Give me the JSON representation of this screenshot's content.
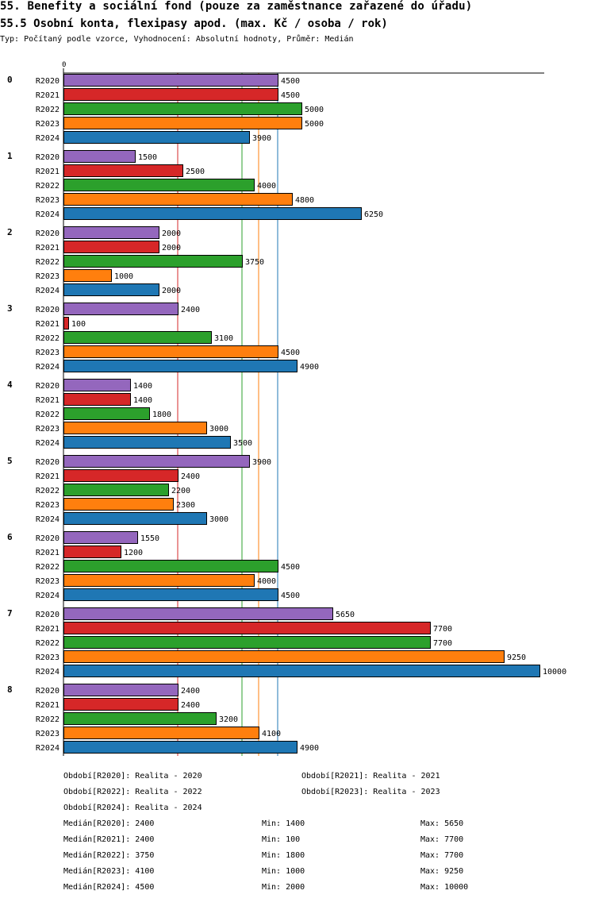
{
  "header": {
    "title": "55. Benefity a sociální fond (pouze za zaměstnance zařazené do úřadu)",
    "subtitle": "55.5 Osobní konta, flexipasy apod. (max. Kč / osoba / rok)",
    "typeline": "Typ: Počítaný podle vzorce, Vyhodnocení: Absolutní hodnoty, Průměr: Medián"
  },
  "chart_data": {
    "type": "bar",
    "orientation": "horizontal",
    "axis_zero_label": "0",
    "xlim": [
      0,
      10000
    ],
    "categories": [
      "0",
      "1",
      "2",
      "3",
      "4",
      "5",
      "6",
      "7",
      "8"
    ],
    "series": [
      {
        "name": "R2020",
        "color": "#9467bd",
        "values": [
          4500,
          1500,
          2000,
          2400,
          1400,
          3900,
          1550,
          5650,
          2400
        ]
      },
      {
        "name": "R2021",
        "color": "#d62728",
        "values": [
          4500,
          2500,
          2000,
          100,
          1400,
          2400,
          1200,
          7700,
          2400
        ]
      },
      {
        "name": "R2022",
        "color": "#2ca02c",
        "values": [
          5000,
          4000,
          3750,
          3100,
          1800,
          2200,
          4500,
          7700,
          3200
        ]
      },
      {
        "name": "R2023",
        "color": "#ff7f0e",
        "values": [
          5000,
          4800,
          1000,
          4500,
          3000,
          2300,
          4000,
          9250,
          4100
        ]
      },
      {
        "name": "R2024",
        "color": "#1f77b4",
        "values": [
          3900,
          6250,
          2000,
          4900,
          3500,
          3000,
          4500,
          10000,
          4900
        ]
      }
    ],
    "median_lines": [
      {
        "series": "R2020",
        "value": 2400,
        "color": "#d62728"
      },
      {
        "series": "R2022",
        "value": 3750,
        "color": "#2ca02c"
      },
      {
        "series": "R2023",
        "value": 4100,
        "color": "#ff7f0e"
      },
      {
        "series": "R2024",
        "value": 4500,
        "color": "#1f77b4"
      }
    ]
  },
  "legend": {
    "periods": [
      "Období[R2020]: Realita - 2020",
      "Období[R2021]: Realita - 2021",
      "Období[R2022]: Realita - 2022",
      "Období[R2023]: Realita - 2023",
      "Období[R2024]: Realita - 2024"
    ],
    "stats": [
      {
        "median": "Medián[R2020]: 2400",
        "min": "Min: 1400",
        "max": "Max: 5650"
      },
      {
        "median": "Medián[R2021]: 2400",
        "min": "Min: 100",
        "max": "Max: 7700"
      },
      {
        "median": "Medián[R2022]: 3750",
        "min": "Min: 1800",
        "max": "Max: 7700"
      },
      {
        "median": "Medián[R2023]: 4100",
        "min": "Min: 1000",
        "max": "Max: 9250"
      },
      {
        "median": "Medián[R2024]: 4500",
        "min": "Min: 2000",
        "max": "Max: 10000"
      }
    ]
  }
}
